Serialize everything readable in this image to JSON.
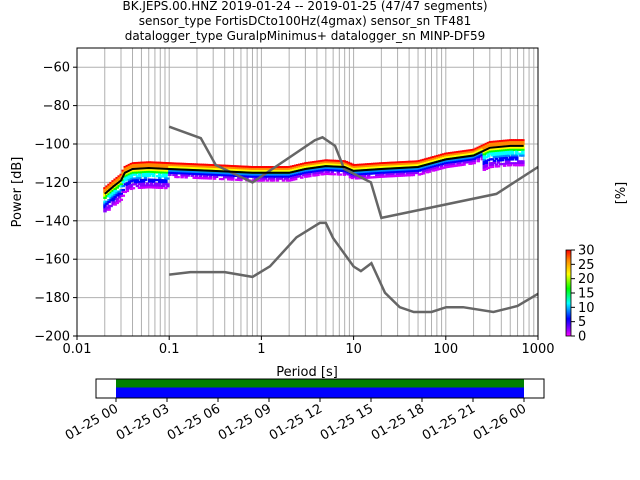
{
  "chart_data": {
    "type": "heatmap",
    "title_lines": [
      "BK.JEPS.00.HNZ   2019-01-24 -- 2019-01-25  (47/47 segments)",
      "sensor_type FortisDCto100Hz(4gmax) sensor_sn TF481",
      "datalogger_type GuralpMinimus+ datalogger_sn MINP-DF59"
    ],
    "xlabel": "Period [s]",
    "ylabel": "Power [dB]",
    "xscale": "log",
    "xlim": [
      0.01,
      1000
    ],
    "ylim": [
      -200,
      -50
    ],
    "xticks": [
      0.01,
      0.1,
      1,
      10,
      100,
      1000
    ],
    "xtick_labels": [
      "0.01",
      "0.1",
      "1",
      "10",
      "100",
      "1000"
    ],
    "yticks": [
      -200,
      -180,
      -160,
      -140,
      -120,
      -100,
      -80,
      -60
    ],
    "ytick_labels": [
      "−200",
      "−180",
      "−160",
      "−140",
      "−120",
      "−100",
      "−80",
      "−60"
    ],
    "grid": true,
    "nhnm": [
      [
        0.1,
        -91
      ],
      [
        0.22,
        -97
      ],
      [
        0.32,
        -111
      ],
      [
        0.8,
        -120
      ],
      [
        3.8,
        -98
      ],
      [
        4.6,
        -96.5
      ],
      [
        6.3,
        -101
      ],
      [
        7.9,
        -113
      ],
      [
        15.4,
        -120
      ],
      [
        20,
        -138.5
      ],
      [
        354,
        -126
      ],
      [
        1000,
        -112
      ]
    ],
    "nlnm": [
      [
        0.1,
        -168
      ],
      [
        0.17,
        -166.7
      ],
      [
        0.4,
        -166.7
      ],
      [
        0.8,
        -169.2
      ],
      [
        1.24,
        -163.7
      ],
      [
        2.4,
        -148.6
      ],
      [
        4.3,
        -141.1
      ],
      [
        5,
        -141.1
      ],
      [
        6,
        -149
      ],
      [
        10,
        -163.8
      ],
      [
        12,
        -166.2
      ],
      [
        15.6,
        -162.1
      ],
      [
        21.9,
        -177.5
      ],
      [
        31.6,
        -185
      ],
      [
        45,
        -187.5
      ],
      [
        70,
        -187.5
      ],
      [
        101,
        -185
      ],
      [
        154,
        -185
      ],
      [
        328,
        -187.5
      ],
      [
        600,
        -184.4
      ],
      [
        1000,
        -178
      ]
    ],
    "median": [
      [
        0.02,
        -126
      ],
      [
        0.025,
        -122
      ],
      [
        0.03,
        -119
      ],
      [
        0.033,
        -115
      ],
      [
        0.04,
        -113
      ],
      [
        0.06,
        -112.5
      ],
      [
        0.1,
        -113
      ],
      [
        0.3,
        -114
      ],
      [
        0.8,
        -115
      ],
      [
        2,
        -115
      ],
      [
        3,
        -113
      ],
      [
        5,
        -111.5
      ],
      [
        8,
        -112
      ],
      [
        10,
        -114
      ],
      [
        20,
        -113
      ],
      [
        50,
        -112
      ],
      [
        100,
        -108
      ],
      [
        200,
        -106
      ],
      [
        300,
        -102
      ],
      [
        500,
        -101
      ],
      [
        700,
        -101
      ]
    ],
    "colorbar": {
      "label": "[%]",
      "range": [
        0,
        30
      ],
      "ticks": [
        0,
        5,
        10,
        15,
        20,
        25,
        30
      ],
      "tick_labels": [
        "0",
        "5",
        "10",
        "15",
        "20",
        "25",
        "30"
      ]
    },
    "coverage": {
      "range_labels": [
        "01-25 00",
        "01-25 03",
        "01-25 06",
        "01-25 09",
        "01-25 12",
        "01-25 15",
        "01-25 18",
        "01-25 21",
        "01-26 00"
      ],
      "data_fraction_start": 0.0,
      "data_fraction_end": 1.0,
      "colors": {
        "top": "#008000",
        "bottom": "#0000ff"
      }
    },
    "colors": {
      "models": "#666666",
      "median": "#000000",
      "grid": "#b0b0b0"
    }
  }
}
